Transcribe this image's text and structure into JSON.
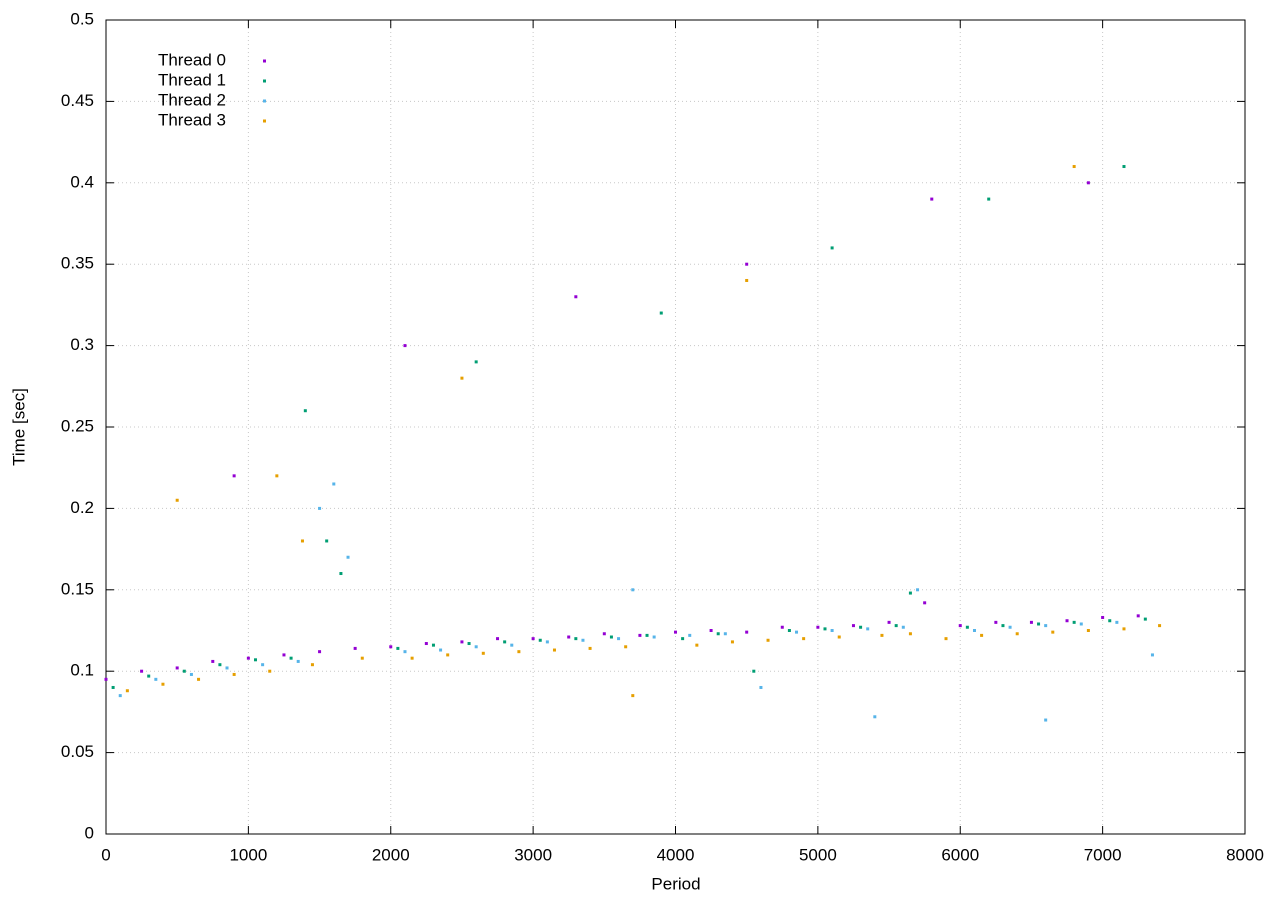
{
  "chart_data": {
    "type": "scatter",
    "xlabel": "Period",
    "ylabel": "Time [sec]",
    "xlim": [
      0,
      8000
    ],
    "ylim": [
      0,
      0.5
    ],
    "xticks": [
      0,
      1000,
      2000,
      3000,
      4000,
      5000,
      6000,
      7000,
      8000
    ],
    "yticks": [
      0,
      0.05,
      0.1,
      0.15,
      0.2,
      0.25,
      0.3,
      0.35,
      0.4,
      0.45,
      0.5
    ],
    "grid": true,
    "legend": "top-left",
    "series": [
      {
        "name": "Thread 0",
        "color": "#9400d3",
        "x": [
          0,
          250,
          500,
          750,
          1000,
          1250,
          1500,
          1750,
          2000,
          2250,
          2500,
          2750,
          3000,
          3250,
          3500,
          3750,
          4000,
          4250,
          4500,
          4750,
          5000,
          5250,
          5500,
          5750,
          6000,
          6250,
          6500,
          6750,
          7000,
          7250,
          900,
          2100,
          3300,
          4500,
          5800,
          6900
        ],
        "values": [
          0.095,
          0.1,
          0.102,
          0.106,
          0.108,
          0.11,
          0.112,
          0.114,
          0.115,
          0.117,
          0.118,
          0.12,
          0.12,
          0.121,
          0.123,
          0.122,
          0.124,
          0.125,
          0.124,
          0.127,
          0.127,
          0.128,
          0.13,
          0.142,
          0.128,
          0.13,
          0.13,
          0.131,
          0.133,
          0.134,
          0.22,
          0.3,
          0.33,
          0.35,
          0.39,
          0.4
        ]
      },
      {
        "name": "Thread 1",
        "color": "#009e73",
        "x": [
          50,
          300,
          550,
          800,
          1050,
          1300,
          1550,
          1650,
          2050,
          2300,
          2550,
          2800,
          3050,
          3300,
          3550,
          3800,
          4050,
          4300,
          4550,
          4800,
          5050,
          5300,
          5550,
          5650,
          6050,
          6300,
          6550,
          6800,
          7050,
          7300,
          1400,
          2600,
          3900,
          5100,
          6200,
          7150
        ],
        "values": [
          0.09,
          0.097,
          0.1,
          0.104,
          0.107,
          0.108,
          0.18,
          0.16,
          0.114,
          0.116,
          0.117,
          0.118,
          0.119,
          0.12,
          0.121,
          0.122,
          0.12,
          0.123,
          0.1,
          0.125,
          0.126,
          0.127,
          0.128,
          0.148,
          0.127,
          0.128,
          0.129,
          0.13,
          0.131,
          0.132,
          0.26,
          0.29,
          0.32,
          0.36,
          0.39,
          0.41
        ]
      },
      {
        "name": "Thread 2",
        "color": "#56b4e9",
        "x": [
          100,
          350,
          600,
          850,
          1100,
          1350,
          1500,
          1700,
          2100,
          2350,
          2600,
          2850,
          3100,
          3350,
          3600,
          3850,
          4100,
          4350,
          4600,
          4850,
          5100,
          5350,
          5600,
          5700,
          6100,
          6350,
          6600,
          6850,
          7100,
          7350,
          1600,
          3700,
          5400,
          6600
        ],
        "values": [
          0.085,
          0.095,
          0.098,
          0.102,
          0.104,
          0.106,
          0.2,
          0.17,
          0.112,
          0.113,
          0.115,
          0.116,
          0.118,
          0.119,
          0.12,
          0.121,
          0.122,
          0.123,
          0.09,
          0.124,
          0.125,
          0.126,
          0.127,
          0.15,
          0.125,
          0.127,
          0.128,
          0.129,
          0.13,
          0.11,
          0.215,
          0.15,
          0.072,
          0.07
        ]
      },
      {
        "name": "Thread 3",
        "color": "#e69f00",
        "x": [
          150,
          400,
          650,
          900,
          1150,
          1380,
          1450,
          1800,
          2150,
          2400,
          2650,
          2900,
          3150,
          3400,
          3650,
          3700,
          4150,
          4400,
          4650,
          4900,
          5150,
          5450,
          5650,
          5900,
          6150,
          6400,
          6650,
          6900,
          7150,
          7400,
          500,
          1200,
          2500,
          4500,
          6800
        ],
        "values": [
          0.088,
          0.092,
          0.095,
          0.098,
          0.1,
          0.18,
          0.104,
          0.108,
          0.108,
          0.11,
          0.111,
          0.112,
          0.113,
          0.114,
          0.115,
          0.085,
          0.116,
          0.118,
          0.119,
          0.12,
          0.121,
          0.122,
          0.123,
          0.12,
          0.122,
          0.123,
          0.124,
          0.125,
          0.126,
          0.128,
          0.205,
          0.22,
          0.28,
          0.34,
          0.41
        ]
      }
    ]
  }
}
